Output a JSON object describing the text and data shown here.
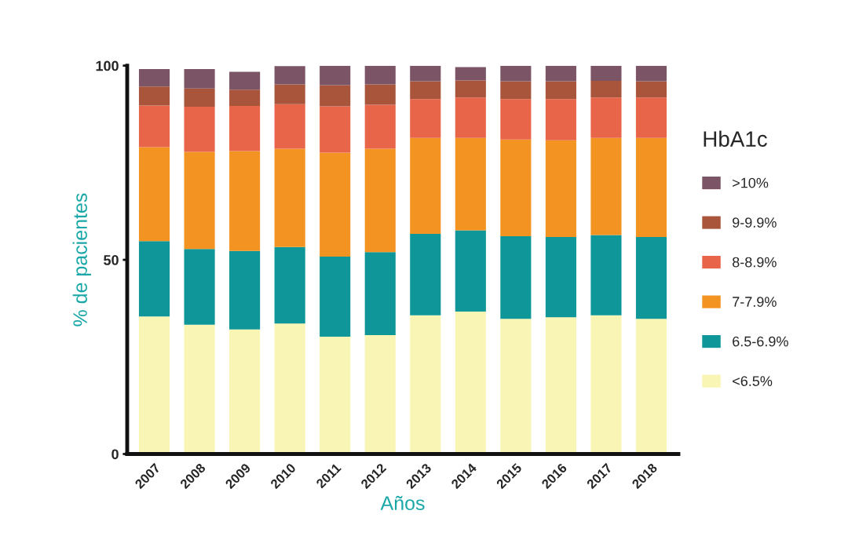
{
  "chart_data": {
    "type": "bar",
    "stacked": true,
    "xlabel": "Años",
    "ylabel": "% de pacientes",
    "legend_title": "HbA1c",
    "legend": "right",
    "categories": [
      "2007",
      "2008",
      "2009",
      "2010",
      "2011",
      "2012",
      "2013",
      "2014",
      "2015",
      "2016",
      "2017",
      "2018"
    ],
    "ylim": [
      0,
      100
    ],
    "yticks": [
      0,
      50,
      100
    ],
    "grid": false,
    "series": [
      {
        "name": "<6.5%",
        "color": "#f8f5b5",
        "values": [
          35.4,
          33.3,
          32.1,
          33.6,
          30.2,
          30.6,
          35.7,
          36.7,
          34.8,
          35.2,
          35.7,
          34.8
        ]
      },
      {
        "name": "6.5-6.9%",
        "color": "#0e9698",
        "values": [
          19.4,
          19.5,
          20.2,
          19.7,
          20.6,
          21.4,
          21.0,
          20.9,
          21.3,
          20.7,
          20.7,
          21.1
        ]
      },
      {
        "name": "7-7.9%",
        "color": "#f39422",
        "values": [
          24.2,
          25.0,
          25.7,
          25.3,
          26.8,
          26.6,
          24.7,
          23.8,
          24.9,
          24.9,
          25.0,
          25.5
        ]
      },
      {
        "name": "8-8.9%",
        "color": "#e8654a",
        "values": [
          10.7,
          11.6,
          11.6,
          11.5,
          11.9,
          11.3,
          10.0,
          10.4,
          10.4,
          10.6,
          10.4,
          10.4
        ]
      },
      {
        "name": "9-9.9%",
        "color": "#a9553b",
        "values": [
          4.9,
          4.7,
          4.2,
          5.1,
          5.5,
          5.3,
          4.6,
          4.4,
          4.6,
          4.6,
          4.3,
          4.2
        ]
      },
      {
        "name": ">10%",
        "color": "#7b5566",
        "values": [
          4.5,
          5.0,
          4.6,
          4.7,
          5.0,
          4.8,
          4.0,
          3.4,
          4.0,
          4.0,
          3.9,
          4.0
        ]
      }
    ]
  }
}
